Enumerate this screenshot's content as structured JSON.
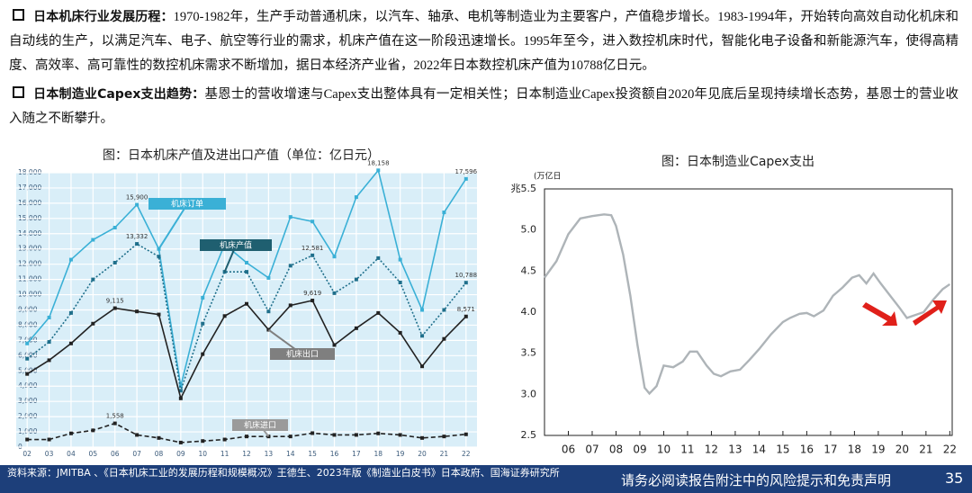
{
  "bullets": [
    {
      "label": "日本机床行业发展历程：",
      "text": "1970-1982年，生产手动普通机床，以汽车、轴承、电机等制造业为主要客户，产值稳步增长。1983-1994年，开始转向高效自动化机床和自动线的生产，以满足汽车、电子、航空等行业的需求，机床产值在这一阶段迅速增长。1995年至今，进入数控机床时代，智能化电子设备和新能源汽车，使得高精度、高效率、高可靠性的数控机床需求不断增加，据日本经济产业省，2022年日本数控机床产值为10788亿日元。"
    },
    {
      "label": "日本制造业Capex支出趋势：",
      "text": "基恩士的营收增速与Capex支出整体具有一定相关性；日本制造业Capex投资额自2020年见底后呈现持续增长态势，基恩士的营业收入随之不断攀升。"
    }
  ],
  "chart_data": [
    {
      "type": "line",
      "title": "图：日本机床产值及进出口产值（单位：亿日元）",
      "categories": [
        "02",
        "03",
        "04",
        "05",
        "06",
        "07",
        "08",
        "09",
        "10",
        "11",
        "12",
        "13",
        "14",
        "15",
        "16",
        "17",
        "18",
        "19",
        "20",
        "21",
        "22"
      ],
      "ylim": [
        0,
        18000
      ],
      "yticks": [
        0,
        {
          "value": 1000,
          "label": "1,000"
        },
        {
          "value": 2000,
          "label": "2,000"
        },
        {
          "value": 3000,
          "label": "3,000"
        },
        {
          "value": 4000,
          "label": "4,000"
        },
        {
          "value": 5000,
          "label": "5,000"
        },
        {
          "value": 6000,
          "label": "6,000"
        },
        {
          "value": 7000,
          "label": "7,000"
        },
        {
          "value": 8000,
          "label": "8,000"
        },
        {
          "value": 9000,
          "label": "9,000"
        },
        {
          "value": 10000,
          "label": "10,000"
        },
        {
          "value": 11000,
          "label": "11,000"
        },
        {
          "value": 12000,
          "label": "12,000"
        },
        {
          "value": 13000,
          "label": "13,000"
        },
        {
          "value": 14000,
          "label": "14,000"
        },
        {
          "value": 15000,
          "label": "15,000"
        },
        {
          "value": 16000,
          "label": "16,000"
        },
        {
          "value": 17000,
          "label": "17,000"
        },
        {
          "value": 18000,
          "label": "18,000"
        }
      ],
      "grid": true,
      "background": "#d9eef8",
      "markers": true,
      "series": [
        {
          "name": "机床订单",
          "color": "#3ab0d6",
          "line_style": "solid",
          "values": [
            6800,
            8500,
            12300,
            13600,
            14400,
            15900,
            13000,
            4000,
            9800,
            13300,
            12100,
            11100,
            15100,
            14800,
            12500,
            16400,
            18158,
            12300,
            9000,
            15400,
            17596
          ],
          "value_labels": [
            null,
            null,
            null,
            null,
            null,
            "15,900",
            null,
            null,
            null,
            null,
            null,
            null,
            null,
            null,
            null,
            null,
            "18,158",
            null,
            null,
            null,
            "17,596"
          ]
        },
        {
          "name": "机床产值",
          "color": "#1f6f8b",
          "line_style": "dotted",
          "values": [
            5800,
            6900,
            8800,
            11000,
            12100,
            13332,
            12500,
            3700,
            8100,
            11500,
            11500,
            8900,
            11900,
            12581,
            10100,
            11000,
            12400,
            10800,
            7300,
            9000,
            10788
          ],
          "value_labels": [
            null,
            null,
            null,
            null,
            null,
            "13,332",
            null,
            null,
            null,
            null,
            null,
            null,
            null,
            "12,581",
            null,
            null,
            null,
            null,
            null,
            null,
            "10,788"
          ]
        },
        {
          "name": "机床出口",
          "color": "#222222",
          "line_style": "solid",
          "values": [
            4800,
            5700,
            6800,
            8100,
            9115,
            8900,
            8700,
            3200,
            6100,
            8600,
            9400,
            7700,
            9300,
            9619,
            6700,
            7800,
            8800,
            7500,
            5300,
            7100,
            8571
          ],
          "value_labels": [
            null,
            null,
            null,
            null,
            "9,115",
            null,
            null,
            null,
            null,
            null,
            null,
            null,
            null,
            "9,619",
            null,
            null,
            null,
            null,
            null,
            null,
            "8,571"
          ]
        },
        {
          "name": "机床进口",
          "color": "#222222",
          "line_style": "dashed",
          "values": [
            500,
            500,
            900,
            1100,
            1558,
            800,
            600,
            300,
            400,
            500,
            700,
            700,
            700,
            916,
            800,
            800,
            900,
            800,
            600,
            700,
            840
          ],
          "value_labels": [
            null,
            null,
            null,
            null,
            "1,558",
            null,
            null,
            null,
            null,
            null,
            null,
            null,
            null,
            null,
            null,
            null,
            null,
            null,
            null,
            null,
            null
          ]
        }
      ]
    },
    {
      "type": "line",
      "title": "图：日本制造业Capex支出",
      "y_label": "(万亿日",
      "xlim": [
        2005,
        2022.1
      ],
      "xticks": [
        {
          "value": 2006,
          "label": "06"
        },
        {
          "value": 2007,
          "label": "07"
        },
        {
          "value": 2008,
          "label": "08"
        },
        {
          "value": 2009,
          "label": "09"
        },
        {
          "value": 2010,
          "label": "10"
        },
        {
          "value": 2011,
          "label": "11"
        },
        {
          "value": 2012,
          "label": "12"
        },
        {
          "value": 2013,
          "label": "13"
        },
        {
          "value": 2014,
          "label": "14"
        },
        {
          "value": 2015,
          "label": "15"
        },
        {
          "value": 2016,
          "label": "16"
        },
        {
          "value": 2017,
          "label": "17"
        },
        {
          "value": 2018,
          "label": "18"
        },
        {
          "value": 2019,
          "label": "19"
        },
        {
          "value": 2020,
          "label": "20"
        },
        {
          "value": 2021,
          "label": "21"
        },
        {
          "value": 2022,
          "label": "22"
        }
      ],
      "ylim": [
        2.5,
        5.5
      ],
      "yticks": [
        {
          "value": 2.5,
          "label": "2.5"
        },
        {
          "value": 3,
          "label": "3.0"
        },
        {
          "value": 3.5,
          "label": "3.5"
        },
        {
          "value": 4,
          "label": "4.0"
        },
        {
          "value": 4.5,
          "label": "4.5"
        },
        {
          "value": 5,
          "label": "5.0"
        },
        {
          "value": 5.5,
          "label": "兆5.5"
        }
      ],
      "grid": false,
      "background": "#ffffff",
      "markers": false,
      "x": [
        2005.0,
        2005.5,
        2006.0,
        2006.5,
        2007.0,
        2007.5,
        2007.8,
        2008.0,
        2008.3,
        2008.6,
        2008.9,
        2009.2,
        2009.4,
        2009.7,
        2010.0,
        2010.4,
        2010.8,
        2011.1,
        2011.4,
        2011.8,
        2012.1,
        2012.4,
        2012.8,
        2013.2,
        2013.6,
        2014.0,
        2014.5,
        2015.0,
        2015.3,
        2015.7,
        2016.0,
        2016.3,
        2016.7,
        2017.1,
        2017.5,
        2017.9,
        2018.2,
        2018.5,
        2018.8,
        2019.1,
        2019.5,
        2019.9,
        2020.2,
        2020.5,
        2020.9,
        2021.3,
        2021.7,
        2022.0
      ],
      "series": [
        {
          "color": "#aeb4b8",
          "line_style": "solid",
          "values": [
            4.42,
            4.62,
            4.95,
            5.14,
            5.17,
            5.19,
            5.18,
            5.05,
            4.7,
            4.2,
            3.6,
            3.08,
            3.01,
            3.1,
            3.35,
            3.33,
            3.4,
            3.52,
            3.52,
            3.35,
            3.25,
            3.22,
            3.28,
            3.3,
            3.42,
            3.55,
            3.73,
            3.88,
            3.93,
            3.98,
            3.99,
            3.95,
            4.02,
            4.2,
            4.3,
            4.42,
            4.45,
            4.35,
            4.47,
            4.35,
            4.2,
            4.05,
            3.93,
            3.96,
            4.0,
            4.15,
            4.28,
            4.34
          ]
        }
      ]
    }
  ],
  "footer": {
    "source": "资料来源：JMITBA 、《日本机床工业的发展历程和规模概况》王德生、2023年版《制造业白皮书》日本政府、国海证券研究所",
    "disclaimer": "请务必阅读报告附注中的风险提示和免责声明",
    "page": "35"
  }
}
